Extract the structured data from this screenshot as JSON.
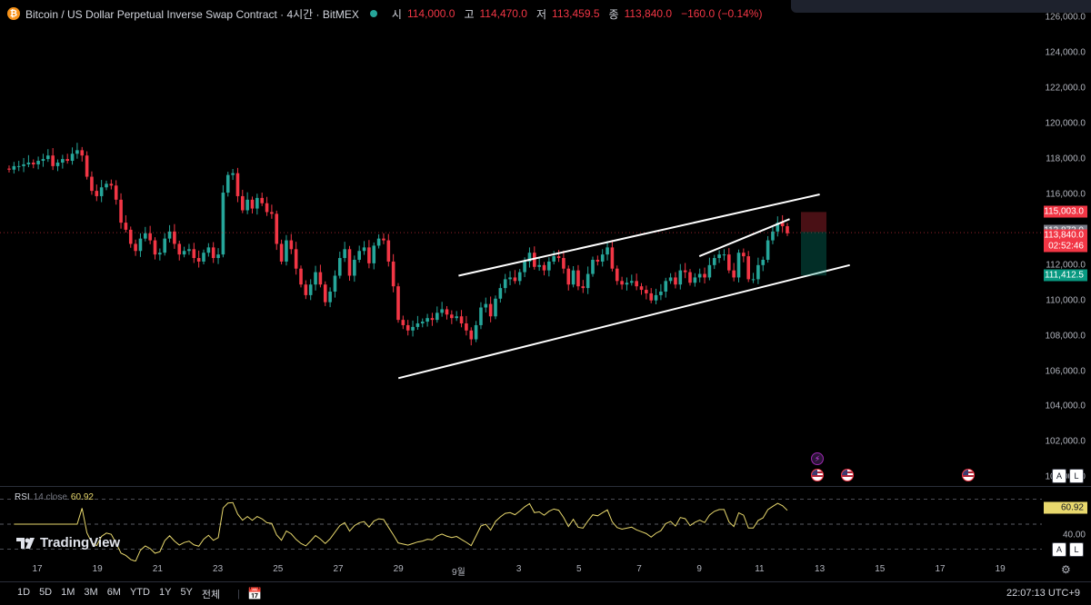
{
  "header": {
    "title": "Bitcoin / US Dollar Perpetual Inverse Swap Contract · 4시간 · BitMEX",
    "open_label": "시",
    "open": "114,000.0",
    "high_label": "고",
    "high": "114,470.0",
    "low_label": "저",
    "low": "113,459.5",
    "close_label": "종",
    "close": "113,840.0",
    "change": "−160.0 (−0.14%)"
  },
  "price_axis": {
    "ticks": [
      "126,000.0",
      "124,000.0",
      "122,000.0",
      "120,000.0",
      "118,000.0",
      "116,000.0",
      "112,000.0",
      "110,000.0",
      "108,000.0",
      "106,000.0",
      "104,000.0",
      "102,000.0",
      "100,000.0"
    ],
    "tag_upper": "115,003.0",
    "tag_ref": "113,873.0",
    "tag_last": "113,840.0",
    "tag_countdown": "02:52:46",
    "tag_lower": "111,412.5"
  },
  "rsi": {
    "label": "RSI",
    "params": "14 close",
    "value": "60.92",
    "axis_tick": "40.00",
    "tag": "60.92"
  },
  "watermark": "TradingView",
  "time_axis": [
    "17",
    "19",
    "21",
    "23",
    "25",
    "27",
    "29",
    "9월",
    "3",
    "5",
    "7",
    "9",
    "11",
    "13",
    "15",
    "17",
    "19"
  ],
  "ranges": [
    "1D",
    "5D",
    "1M",
    "3M",
    "6M",
    "YTD",
    "1Y",
    "5Y",
    "전체"
  ],
  "clock": "22:07:13 UTC+9",
  "scale_buttons": [
    "A",
    "L"
  ],
  "icons": {
    "settings": "gear-icon",
    "compare": "calendar-range-icon",
    "events": "us-flag-icon"
  },
  "colors": {
    "up": "#26a69a",
    "down": "#f23645",
    "rsi": "#e8d86d",
    "channel": "#ffffff"
  },
  "chart_data": {
    "type": "candlestick",
    "title": "Bitcoin / US Dollar Perpetual Inverse Swap Contract · 4시간 · BitMEX",
    "x_ticks": [
      "17",
      "19",
      "21",
      "23",
      "25",
      "27",
      "29",
      "9월",
      "3",
      "5",
      "7",
      "9",
      "11",
      "13",
      "15",
      "17",
      "19"
    ],
    "ylim": [
      99500,
      127000
    ],
    "grid": false,
    "close_series": [
      117400,
      117600,
      117600,
      117700,
      117800,
      117700,
      117900,
      118000,
      118200,
      117600,
      117800,
      118000,
      117900,
      118300,
      118500,
      118200,
      117000,
      116200,
      115900,
      116400,
      116600,
      116500,
      115700,
      114400,
      114000,
      113200,
      112800,
      113500,
      113800,
      113400,
      112600,
      112700,
      113500,
      113900,
      113200,
      112600,
      112800,
      112900,
      112400,
      112200,
      112700,
      113000,
      112400,
      112600,
      116100,
      117100,
      117200,
      115900,
      115100,
      115700,
      115200,
      115800,
      115500,
      115000,
      114900,
      113200,
      112200,
      113400,
      112900,
      111800,
      110900,
      110300,
      110900,
      111600,
      110900,
      109900,
      110500,
      111400,
      112400,
      112900,
      111400,
      112300,
      112800,
      113000,
      112100,
      113100,
      113500,
      113400,
      112200,
      110800,
      108900,
      108600,
      108300,
      108500,
      108700,
      108800,
      109000,
      108900,
      109300,
      109500,
      109200,
      109000,
      109100,
      108700,
      108300,
      107800,
      108600,
      109600,
      109800,
      109100,
      110100,
      110700,
      111200,
      111300,
      111100,
      111600,
      112200,
      112700,
      111900,
      112000,
      111700,
      112200,
      112500,
      112400,
      111800,
      110900,
      111700,
      110800,
      110700,
      111500,
      112300,
      112200,
      112600,
      113000,
      111800,
      111100,
      110900,
      111000,
      111100,
      110800,
      110600,
      110400,
      110000,
      110300,
      110500,
      111100,
      111300,
      110900,
      111700,
      111600,
      111000,
      111300,
      111500,
      111300,
      112000,
      112400,
      112600,
      112600,
      111700,
      111300,
      112700,
      112500,
      111200,
      111200,
      112000,
      112300,
      113400,
      113900,
      114400,
      114200,
      113800
    ],
    "channel_upper": [
      {
        "date": "8/31",
        "price": 111400
      },
      {
        "date": "9/12",
        "price": 116000
      }
    ],
    "channel_lower": [
      {
        "date": "8/29",
        "price": 105600
      },
      {
        "date": "9/13",
        "price": 112000
      }
    ],
    "inner_trendline": [
      {
        "date": "9/8",
        "price": 112500
      },
      {
        "date": "9/11",
        "price": 114600
      }
    ],
    "position_box": {
      "entry": 113873.0,
      "stop": 115003.0,
      "target": 111412.5
    },
    "last_price": 113840.0,
    "rsi": {
      "period": 14,
      "source": "close",
      "last": 60.92
    }
  }
}
